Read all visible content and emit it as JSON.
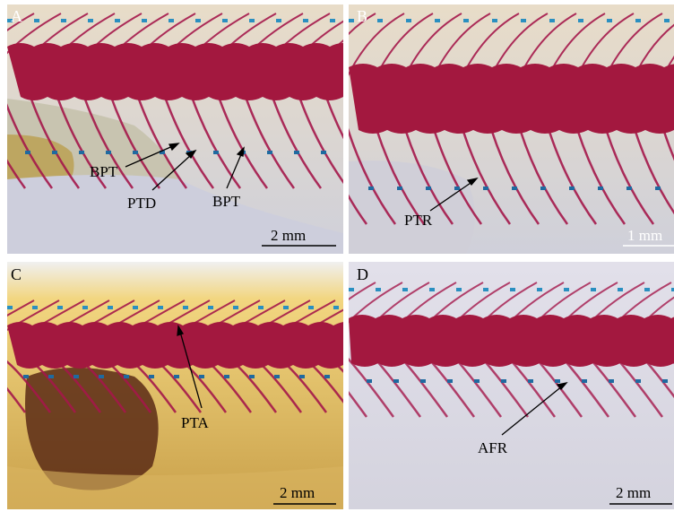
{
  "panels": [
    {
      "letter": "A",
      "labels": [
        "BPT",
        "PTD",
        "BPT"
      ],
      "scale": "2 mm"
    },
    {
      "letter": "B",
      "labels": [
        "PTR"
      ],
      "scale": "1 mm"
    },
    {
      "letter": "C",
      "labels": [
        "PTA"
      ],
      "scale": "2 mm"
    },
    {
      "letter": "D",
      "labels": [
        "AFR"
      ],
      "scale": "2 mm"
    }
  ]
}
